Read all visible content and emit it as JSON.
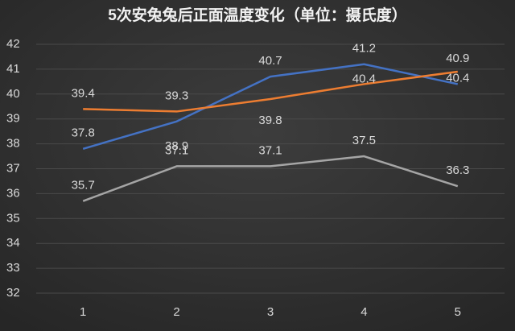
{
  "chart_data": {
    "type": "line",
    "title": "5次安兔兔后正面温度变化（单位：摄氏度）",
    "categories": [
      "1",
      "2",
      "3",
      "4",
      "5"
    ],
    "series": [
      {
        "color": "#4472c4",
        "values": [
          37.8,
          38.9,
          40.7,
          41.2,
          40.4
        ]
      },
      {
        "color": "#ed7d31",
        "values": [
          39.4,
          39.3,
          39.8,
          40.4,
          40.9
        ]
      },
      {
        "color": "#a5a5a5",
        "values": [
          35.7,
          37.1,
          37.1,
          37.5,
          36.3
        ]
      }
    ],
    "ylim": [
      32,
      42
    ],
    "yticks": [
      32,
      33,
      34,
      35,
      36,
      37,
      38,
      39,
      40,
      41,
      42
    ],
    "grid": true
  }
}
